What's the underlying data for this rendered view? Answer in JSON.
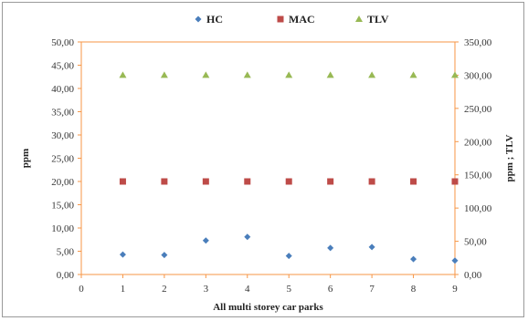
{
  "chart_data": {
    "type": "scatter",
    "xlabel": "All multi storey car parks",
    "ylabel": "ppm",
    "y2label": "ppm ; TLV",
    "xlim": [
      0,
      9
    ],
    "ylim": [
      0,
      50
    ],
    "y2lim": [
      0,
      350
    ],
    "x_ticks": [
      "0",
      "1",
      "2",
      "3",
      "4",
      "5",
      "6",
      "7",
      "8",
      "9"
    ],
    "y_ticks": [
      "0,00",
      "5,00",
      "10,00",
      "15,00",
      "20,00",
      "25,00",
      "30,00",
      "35,00",
      "40,00",
      "45,00",
      "50,00"
    ],
    "y2_ticks": [
      "0,00",
      "50,00",
      "100,00",
      "150,00",
      "200,00",
      "250,00",
      "300,00",
      "350,00"
    ],
    "legend_position": "top",
    "grid": false,
    "series": [
      {
        "name": "HC",
        "axis": "left",
        "marker": "diamond",
        "color": "#4a7ebb",
        "x": [
          1,
          2,
          3,
          4,
          5,
          6,
          7,
          8,
          9
        ],
        "values": [
          4.3,
          4.2,
          7.3,
          8.1,
          4.0,
          5.7,
          5.9,
          3.3,
          3.0
        ]
      },
      {
        "name": "MAC",
        "axis": "left",
        "marker": "square",
        "color": "#be4b48",
        "x": [
          1,
          2,
          3,
          4,
          5,
          6,
          7,
          8,
          9
        ],
        "values": [
          20,
          20,
          20,
          20,
          20,
          20,
          20,
          20,
          20
        ]
      },
      {
        "name": "TLV",
        "axis": "right",
        "marker": "triangle",
        "color": "#98b954",
        "x": [
          1,
          2,
          3,
          4,
          5,
          6,
          7,
          8,
          9
        ],
        "values": [
          300,
          300,
          300,
          300,
          300,
          300,
          300,
          300,
          300
        ]
      }
    ],
    "axis_color": "#f79646"
  }
}
